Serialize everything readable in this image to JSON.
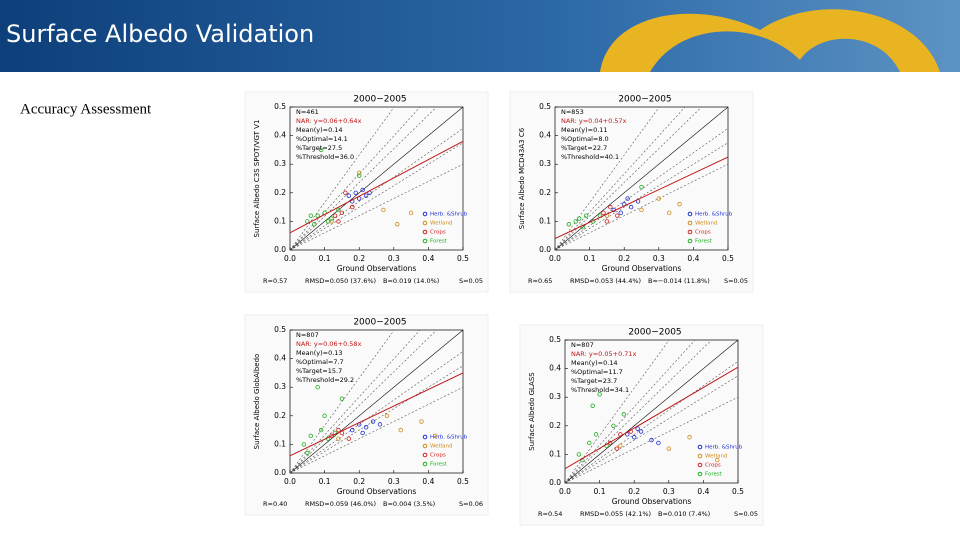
{
  "header": {
    "title": "Surface Albedo Validation"
  },
  "subtitle": "Accuracy Assessment",
  "chart_data": [
    {
      "type": "scatter",
      "title": "2000−2005",
      "x_label": "Ground Observations",
      "y_label": "Surface Albedo C3S SPOT/VGT V1",
      "xlim": [
        0,
        0.5
      ],
      "ylim": [
        0,
        0.5
      ],
      "xticks": [
        {
          "value": 0,
          "label": "0.0"
        },
        0.1,
        0.2,
        0.3,
        0.4,
        0.5
      ],
      "yticks": [
        {
          "value": 0,
          "label": "0.0"
        },
        0.1,
        0.2,
        0.3,
        0.4,
        0.5
      ],
      "annotations": [
        "N=461",
        "NAR: y=0.06+0.64x",
        "Mean(y)=0.14",
        "%Optimal=14.1",
        "%Target=27.5",
        "%Threshold=36.0"
      ],
      "stats": [
        "R=0.57",
        "RMSD=0.050 (37.6%)",
        "B=0.019 (14.0%)",
        "S=0.05"
      ],
      "fit": {
        "intercept": 0.06,
        "slope": 0.64
      },
      "series": [
        {
          "name": "Herb. &Shrub",
          "color": "#1f2fd0",
          "x": [
            0.17,
            0.19,
            0.2,
            0.21,
            0.22,
            0.18,
            0.23
          ],
          "values": [
            0.19,
            0.2,
            0.18,
            0.21,
            0.19,
            0.17,
            0.2
          ]
        },
        {
          "name": "Wetland",
          "color": "#d08a1a",
          "x": [
            0.12,
            0.18,
            0.27,
            0.31,
            0.35,
            0.2
          ],
          "values": [
            0.1,
            0.15,
            0.14,
            0.09,
            0.13,
            0.27
          ]
        },
        {
          "name": "Crops",
          "color": "#d01f1f",
          "x": [
            0.13,
            0.15,
            0.16,
            0.14,
            0.18
          ],
          "values": [
            0.12,
            0.13,
            0.2,
            0.1,
            0.15
          ]
        },
        {
          "name": "Forest",
          "color": "#1fb01f",
          "x": [
            0.05,
            0.08,
            0.1,
            0.12,
            0.07,
            0.14,
            0.09,
            0.11,
            0.2,
            0.06
          ],
          "values": [
            0.1,
            0.12,
            0.13,
            0.11,
            0.09,
            0.14,
            0.35,
            0.1,
            0.26,
            0.12
          ]
        }
      ]
    },
    {
      "type": "scatter",
      "title": "2000−2005",
      "x_label": "Ground Observations",
      "y_label": "Surface Albedo MCD43A3 C6",
      "xlim": [
        0,
        0.5
      ],
      "ylim": [
        0,
        0.5
      ],
      "xticks": [
        {
          "value": 0,
          "label": "0.0"
        },
        0.1,
        0.2,
        0.3,
        0.4,
        0.5
      ],
      "yticks": [
        {
          "value": 0,
          "label": "0.0"
        },
        0.1,
        0.2,
        0.3,
        0.4,
        0.5
      ],
      "annotations": [
        "N=853",
        "NAR: y=0.04+0.57x",
        "Mean(y)=0.11",
        "%Optimal=8.0",
        "%Target=22.7",
        "%Threshold=40.1"
      ],
      "stats": [
        "R=0.65",
        "RMSD=0.053 (44.4%)",
        "B=−0.014 (11.8%)",
        "S=0.05"
      ],
      "fit": {
        "intercept": 0.04,
        "slope": 0.57
      },
      "series": [
        {
          "name": "Herb. &Shrub",
          "color": "#1f2fd0",
          "x": [
            0.17,
            0.2,
            0.22,
            0.24,
            0.19,
            0.21
          ],
          "values": [
            0.14,
            0.16,
            0.15,
            0.17,
            0.13,
            0.18
          ]
        },
        {
          "name": "Wetland",
          "color": "#d08a1a",
          "x": [
            0.15,
            0.25,
            0.3,
            0.33,
            0.36
          ],
          "values": [
            0.12,
            0.14,
            0.18,
            0.13,
            0.16
          ]
        },
        {
          "name": "Crops",
          "color": "#d01f1f",
          "x": [
            0.14,
            0.16,
            0.18,
            0.15
          ],
          "values": [
            0.13,
            0.15,
            0.12,
            0.1
          ]
        },
        {
          "name": "Forest",
          "color": "#1fb01f",
          "x": [
            0.04,
            0.07,
            0.09,
            0.11,
            0.13,
            0.08,
            0.25,
            0.06
          ],
          "values": [
            0.09,
            0.11,
            0.12,
            0.1,
            0.12,
            0.08,
            0.22,
            0.1
          ]
        }
      ]
    },
    {
      "type": "scatter",
      "title": "2000−2005",
      "x_label": "Ground Observations",
      "y_label": "Surface Albedo GlobAlbedo",
      "xlim": [
        0,
        0.5
      ],
      "ylim": [
        0,
        0.5
      ],
      "xticks": [
        {
          "value": 0,
          "label": "0.0"
        },
        0.1,
        0.2,
        0.3,
        0.4,
        0.5
      ],
      "yticks": [
        {
          "value": 0,
          "label": "0.0"
        },
        0.1,
        0.2,
        0.3,
        0.4,
        0.5
      ],
      "annotations": [
        "N=807",
        "NAR: y=0.06+0.58x",
        "Mean(y)=0.13",
        "%Optimal=7.7",
        "%Target=15.7",
        "%Threshold=29.2"
      ],
      "stats": [
        "R=0.40",
        "RMSD=0.059 (46.0%)",
        "B=0.004 (3.5%)",
        "S=0.06"
      ],
      "fit": {
        "intercept": 0.06,
        "slope": 0.58
      },
      "series": [
        {
          "name": "Herb. &Shrub",
          "color": "#1f2fd0",
          "x": [
            0.18,
            0.2,
            0.22,
            0.24,
            0.21,
            0.26
          ],
          "values": [
            0.15,
            0.17,
            0.16,
            0.18,
            0.14,
            0.17
          ]
        },
        {
          "name": "Wetland",
          "color": "#d08a1a",
          "x": [
            0.14,
            0.28,
            0.32,
            0.38,
            0.42
          ],
          "values": [
            0.12,
            0.2,
            0.15,
            0.18,
            0.13
          ]
        },
        {
          "name": "Crops",
          "color": "#d01f1f",
          "x": [
            0.12,
            0.15,
            0.17,
            0.14
          ],
          "values": [
            0.13,
            0.14,
            0.12,
            0.15
          ]
        },
        {
          "name": "Forest",
          "color": "#1fb01f",
          "x": [
            0.04,
            0.06,
            0.09,
            0.11,
            0.13,
            0.08,
            0.15,
            0.1,
            0.05
          ],
          "values": [
            0.1,
            0.13,
            0.15,
            0.12,
            0.14,
            0.3,
            0.26,
            0.2,
            0.07
          ]
        }
      ]
    },
    {
      "type": "scatter",
      "title": "2000−2005",
      "x_label": "Ground Observations",
      "y_label": "Surface Albedo GLASS",
      "xlim": [
        0,
        0.5
      ],
      "ylim": [
        0,
        0.5
      ],
      "xticks": [
        {
          "value": 0,
          "label": "0.0"
        },
        0.1,
        0.2,
        0.3,
        0.4,
        0.5
      ],
      "yticks": [
        {
          "value": 0,
          "label": "0.0"
        },
        0.1,
        0.2,
        0.3,
        0.4,
        0.5
      ],
      "annotations": [
        "N=807",
        "NAR: y=0.05+0.71x",
        "Mean(y)=0.14",
        "%Optimal=11.7",
        "%Target=23.7",
        "%Threshold=34.1"
      ],
      "stats": [
        "R=0.54",
        "RMSD=0.055 (42.1%)",
        "B=0.010 (7.4%)",
        "S=0.05"
      ],
      "fit": {
        "intercept": 0.05,
        "slope": 0.71
      },
      "series": [
        {
          "name": "Herb. &Shrub",
          "color": "#1f2fd0",
          "x": [
            0.18,
            0.2,
            0.22,
            0.25,
            0.27,
            0.21
          ],
          "values": [
            0.17,
            0.16,
            0.18,
            0.15,
            0.14,
            0.19
          ]
        },
        {
          "name": "Wetland",
          "color": "#d08a1a",
          "x": [
            0.16,
            0.3,
            0.36,
            0.44
          ],
          "values": [
            0.13,
            0.12,
            0.16,
            0.08
          ]
        },
        {
          "name": "Crops",
          "color": "#d01f1f",
          "x": [
            0.13,
            0.16,
            0.19,
            0.15
          ],
          "values": [
            0.14,
            0.17,
            0.18,
            0.12
          ]
        },
        {
          "name": "Forest",
          "color": "#1fb01f",
          "x": [
            0.04,
            0.07,
            0.09,
            0.12,
            0.14,
            0.08,
            0.1,
            0.05,
            0.17
          ],
          "values": [
            0.1,
            0.14,
            0.17,
            0.13,
            0.2,
            0.27,
            0.31,
            0.08,
            0.24
          ]
        }
      ]
    }
  ]
}
